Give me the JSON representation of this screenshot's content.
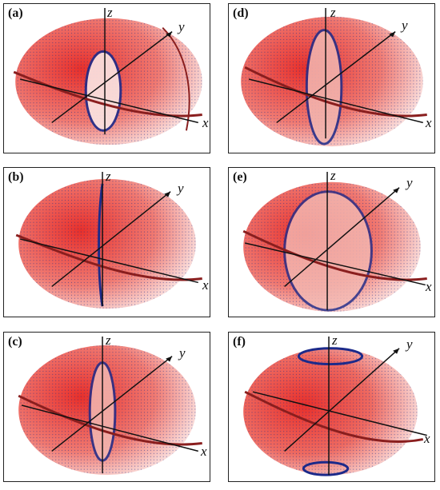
{
  "figure": {
    "panels": [
      {
        "label": "(a)",
        "axes": {
          "x": "x",
          "y": "y",
          "z": "z"
        }
      },
      {
        "label": "(b)",
        "axes": {
          "x": "x",
          "y": "y",
          "z": "z"
        }
      },
      {
        "label": "(c)",
        "axes": {
          "x": "x",
          "y": "y",
          "z": "z"
        }
      },
      {
        "label": "(d)",
        "axes": {
          "x": "x",
          "y": "y",
          "z": "z"
        }
      },
      {
        "label": "(e)",
        "axes": {
          "x": "x",
          "y": "y",
          "z": "z"
        }
      },
      {
        "label": "(f)",
        "axes": {
          "x": "x",
          "y": "y",
          "z": "z"
        }
      }
    ],
    "colors": {
      "surface": "#e8302b",
      "surface_light": "#fbe6e4",
      "dots": "#1c2a8a",
      "curve": "#8a1e1e",
      "frame": "#222222"
    }
  }
}
